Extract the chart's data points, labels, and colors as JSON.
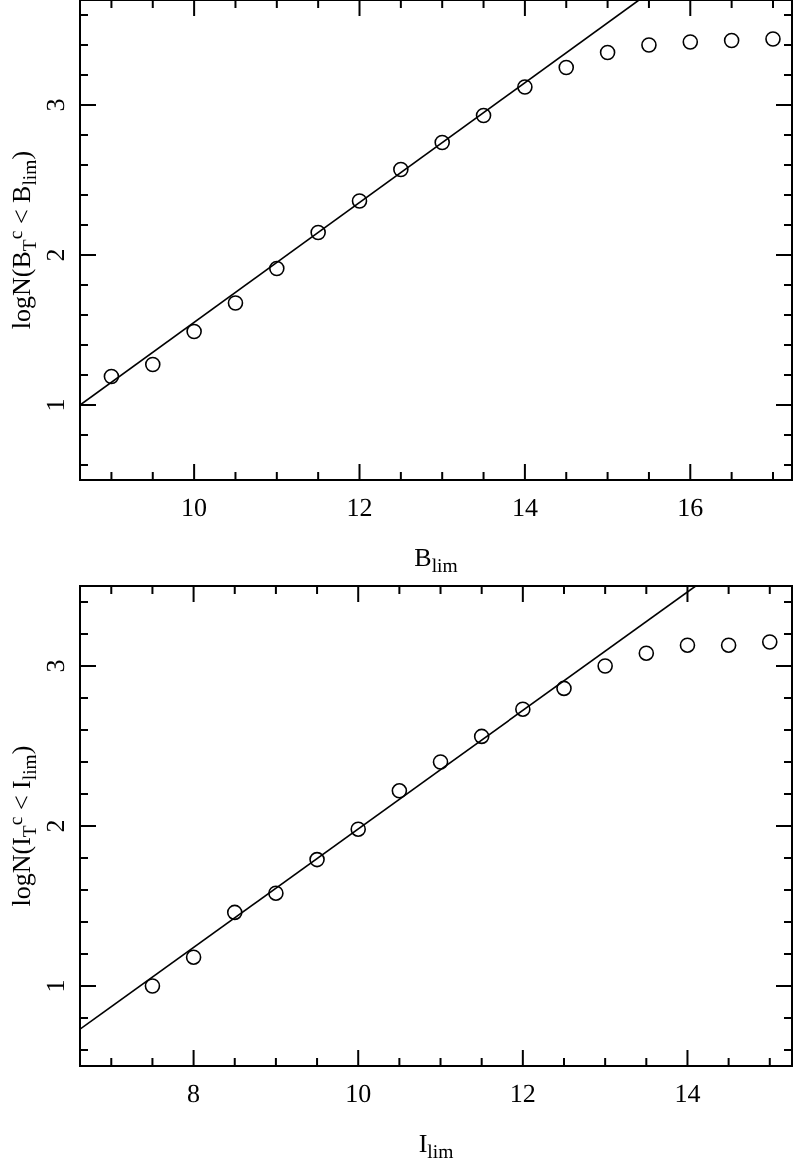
{
  "chart_data": [
    {
      "type": "scatter",
      "xlabel": "B$_{lim}$",
      "ylabel": "logN(B$_{T}$$^{c}$ < B$_{lim}$)",
      "marker": "circle",
      "grid": false,
      "xlim": [
        8.62,
        17.23
      ],
      "ylim": [
        0.5,
        3.7
      ],
      "xticks": [
        {
          "value": 9,
          "label": null
        },
        {
          "value": 9.5,
          "label": null
        },
        10,
        {
          "value": 10.5,
          "label": null
        },
        {
          "value": 11,
          "label": null
        },
        {
          "value": 11.5,
          "label": null
        },
        12,
        {
          "value": 12.5,
          "label": null
        },
        {
          "value": 13,
          "label": null
        },
        {
          "value": 13.5,
          "label": null
        },
        14,
        {
          "value": 14.5,
          "label": null
        },
        {
          "value": 15,
          "label": null
        },
        {
          "value": 15.5,
          "label": null
        },
        16,
        {
          "value": 16.5,
          "label": null
        },
        {
          "value": 17,
          "label": null
        }
      ],
      "yticks": [
        {
          "value": 0.6,
          "label": null
        },
        {
          "value": 0.8,
          "label": null
        },
        1,
        {
          "value": 1.2,
          "label": null
        },
        {
          "value": 1.4,
          "label": null
        },
        {
          "value": 1.6,
          "label": null
        },
        {
          "value": 1.8,
          "label": null
        },
        2,
        {
          "value": 2.2,
          "label": null
        },
        {
          "value": 2.4,
          "label": null
        },
        {
          "value": 2.6,
          "label": null
        },
        {
          "value": 2.8,
          "label": null
        },
        3,
        {
          "value": 3.2,
          "label": null
        },
        {
          "value": 3.4,
          "label": null
        },
        {
          "value": 3.6,
          "label": null
        }
      ],
      "series": [
        {
          "color": "#000000",
          "x": [
            9,
            9.5,
            10,
            10.5,
            11,
            11.5,
            12,
            12.5,
            13,
            13.5,
            14,
            14.5,
            15,
            15.5,
            16,
            16.5,
            17
          ],
          "values": [
            1.19,
            1.27,
            1.49,
            1.68,
            1.91,
            2.15,
            2.36,
            2.57,
            2.75,
            2.93,
            3.12,
            3.25,
            3.35,
            3.4,
            3.42,
            3.43,
            3.44
          ]
        },
        {
          "type": "line",
          "color": "#000000",
          "marker": "none",
          "x": [
            8.62,
            15.38
          ],
          "values": [
            1.0,
            3.7
          ]
        }
      ]
    },
    {
      "type": "scatter",
      "xlabel": "I$_{lim}$",
      "ylabel": "logN(I$_{T}$$^{c}$ < I$_{lim}$)",
      "marker": "circle",
      "grid": false,
      "xlim": [
        6.62,
        15.27
      ],
      "ylim": [
        0.5,
        3.5
      ],
      "xticks": [
        {
          "value": 7,
          "label": null
        },
        {
          "value": 7.5,
          "label": null
        },
        8,
        {
          "value": 8.5,
          "label": null
        },
        {
          "value": 9,
          "label": null
        },
        {
          "value": 9.5,
          "label": null
        },
        10,
        {
          "value": 10.5,
          "label": null
        },
        {
          "value": 11,
          "label": null
        },
        {
          "value": 11.5,
          "label": null
        },
        12,
        {
          "value": 12.5,
          "label": null
        },
        {
          "value": 13,
          "label": null
        },
        {
          "value": 13.5,
          "label": null
        },
        14,
        {
          "value": 14.5,
          "label": null
        },
        {
          "value": 15,
          "label": null
        }
      ],
      "yticks": [
        {
          "value": 0.6,
          "label": null
        },
        {
          "value": 0.8,
          "label": null
        },
        1,
        {
          "value": 1.2,
          "label": null
        },
        {
          "value": 1.4,
          "label": null
        },
        {
          "value": 1.6,
          "label": null
        },
        {
          "value": 1.8,
          "label": null
        },
        2,
        {
          "value": 2.2,
          "label": null
        },
        {
          "value": 2.4,
          "label": null
        },
        {
          "value": 2.6,
          "label": null
        },
        {
          "value": 2.8,
          "label": null
        },
        3,
        {
          "value": 3.2,
          "label": null
        },
        {
          "value": 3.4,
          "label": null
        }
      ],
      "series": [
        {
          "color": "#000000",
          "x": [
            7.5,
            8,
            8.5,
            9,
            9.5,
            10,
            10.5,
            11,
            11.5,
            12,
            12.5,
            13,
            13.5,
            14,
            14.5,
            15
          ],
          "values": [
            1.0,
            1.18,
            1.46,
            1.58,
            1.79,
            1.98,
            2.22,
            2.4,
            2.56,
            2.73,
            2.86,
            3.0,
            3.08,
            3.13,
            3.13,
            3.15
          ]
        },
        {
          "type": "line",
          "color": "#000000",
          "marker": "none",
          "x": [
            6.62,
            14.1
          ],
          "values": [
            0.73,
            3.5
          ]
        }
      ]
    }
  ]
}
